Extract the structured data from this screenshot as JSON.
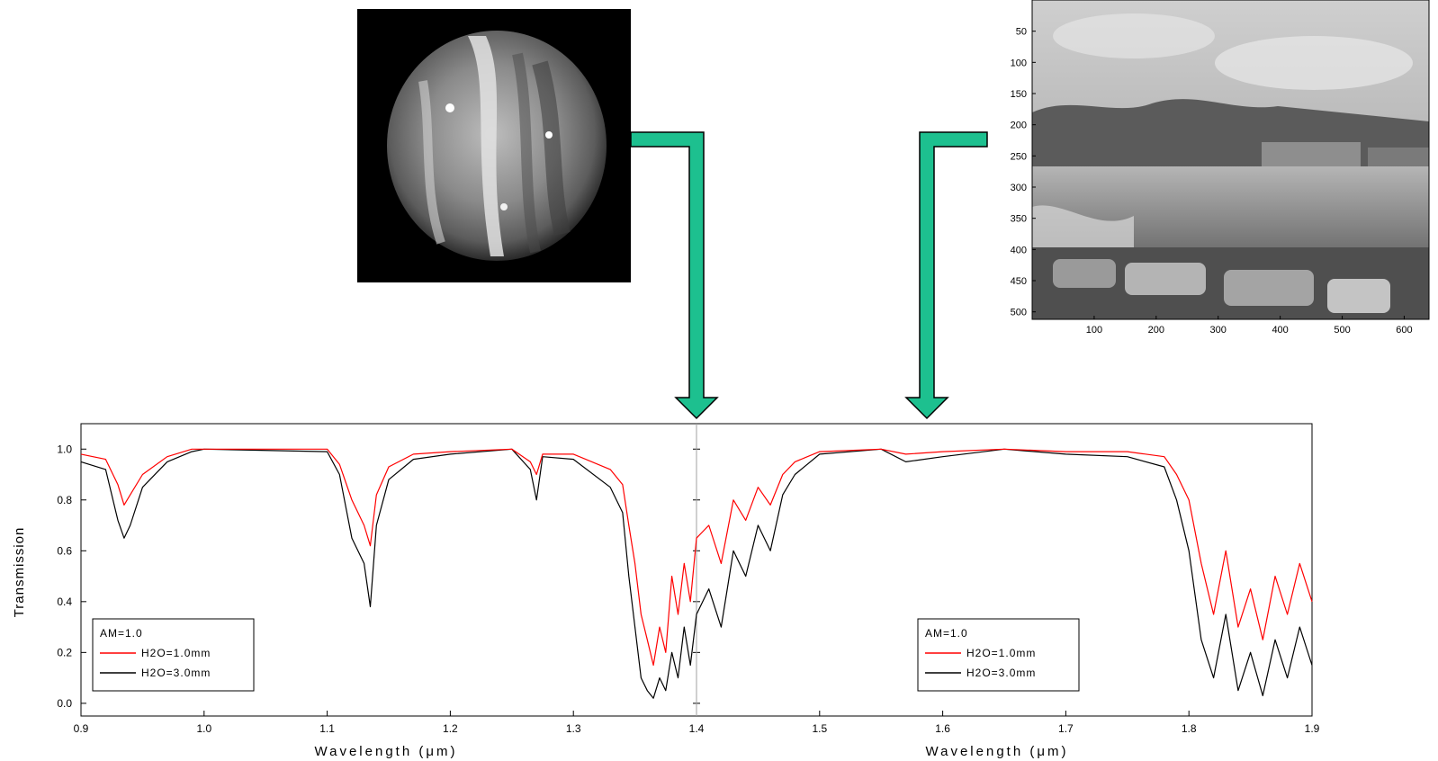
{
  "colors": {
    "arrow_fill": "#1dc08f",
    "series_1mm": "#ff0000",
    "series_3mm": "#000000",
    "divider": "#a0a0a0"
  },
  "photo": {
    "x_ticks": [
      100,
      200,
      300,
      400,
      500,
      600
    ],
    "y_ticks": [
      50,
      100,
      150,
      200,
      250,
      300,
      350,
      400,
      450,
      500
    ],
    "xlim": [
      0,
      640
    ],
    "ylim": [
      0,
      512
    ]
  },
  "chart_data": {
    "type": "line",
    "xlabel": "Wavelength (μm)",
    "ylabel": "Transmission",
    "xlim": [
      0.9,
      1.9
    ],
    "ylim": [
      -0.05,
      1.1
    ],
    "divider_x": 1.4,
    "x_ticks": [
      0.9,
      1.0,
      1.1,
      1.2,
      1.3,
      1.4,
      1.5,
      1.6,
      1.7,
      1.8,
      1.9
    ],
    "x_tick_labels": [
      "0.9",
      "1.0",
      "1.1",
      "1.2",
      "1.3",
      "1.4",
      "1.5",
      "1.6",
      "1.7",
      "1.8",
      "1.9"
    ],
    "y_ticks": [
      0.0,
      0.2,
      0.4,
      0.6,
      0.8,
      1.0
    ],
    "y_tick_labels": [
      "0.0",
      "0.2",
      "0.4",
      "0.6",
      "0.8",
      "1.0"
    ],
    "legends": [
      {
        "header": "AM=1.0",
        "entries": [
          "H2O=1.0mm",
          "H2O=3.0mm"
        ],
        "position": "bottom-left"
      },
      {
        "header": "AM=1.0",
        "entries": [
          "H2O=1.0mm",
          "H2O=3.0mm"
        ],
        "position": "bottom-right"
      }
    ],
    "series": [
      {
        "legend_label": "H2O=1.0mm",
        "color": "#ff0000",
        "x": [
          0.9,
          0.92,
          0.93,
          0.935,
          0.94,
          0.95,
          0.97,
          0.99,
          1.0,
          1.1,
          1.11,
          1.12,
          1.13,
          1.135,
          1.14,
          1.15,
          1.17,
          1.2,
          1.25,
          1.265,
          1.27,
          1.275,
          1.3,
          1.33,
          1.34,
          1.345,
          1.35,
          1.355,
          1.36,
          1.365,
          1.37,
          1.375,
          1.38,
          1.385,
          1.39,
          1.395,
          1.4,
          1.41,
          1.42,
          1.43,
          1.44,
          1.45,
          1.46,
          1.47,
          1.48,
          1.5,
          1.55,
          1.57,
          1.6,
          1.65,
          1.7,
          1.75,
          1.78,
          1.79,
          1.8,
          1.81,
          1.82,
          1.83,
          1.84,
          1.85,
          1.86,
          1.87,
          1.88,
          1.89,
          1.9
        ],
        "y": [
          0.98,
          0.96,
          0.86,
          0.78,
          0.82,
          0.9,
          0.97,
          1.0,
          1.0,
          1.0,
          0.94,
          0.8,
          0.7,
          0.62,
          0.82,
          0.93,
          0.98,
          0.99,
          1.0,
          0.95,
          0.9,
          0.98,
          0.98,
          0.92,
          0.86,
          0.7,
          0.55,
          0.35,
          0.25,
          0.15,
          0.3,
          0.2,
          0.5,
          0.35,
          0.55,
          0.4,
          0.65,
          0.7,
          0.55,
          0.8,
          0.72,
          0.85,
          0.78,
          0.9,
          0.95,
          0.99,
          1.0,
          0.98,
          0.99,
          1.0,
          0.99,
          0.99,
          0.97,
          0.9,
          0.8,
          0.55,
          0.35,
          0.6,
          0.3,
          0.45,
          0.25,
          0.5,
          0.35,
          0.55,
          0.4
        ]
      },
      {
        "legend_label": "H2O=3.0mm",
        "color": "#000000",
        "x": [
          0.9,
          0.92,
          0.93,
          0.935,
          0.94,
          0.95,
          0.97,
          0.99,
          1.0,
          1.1,
          1.11,
          1.12,
          1.13,
          1.135,
          1.14,
          1.15,
          1.17,
          1.2,
          1.25,
          1.265,
          1.27,
          1.275,
          1.3,
          1.33,
          1.34,
          1.345,
          1.35,
          1.355,
          1.36,
          1.365,
          1.37,
          1.375,
          1.38,
          1.385,
          1.39,
          1.395,
          1.4,
          1.41,
          1.42,
          1.43,
          1.44,
          1.45,
          1.46,
          1.47,
          1.48,
          1.5,
          1.55,
          1.57,
          1.6,
          1.65,
          1.7,
          1.75,
          1.78,
          1.79,
          1.8,
          1.81,
          1.82,
          1.83,
          1.84,
          1.85,
          1.86,
          1.87,
          1.88,
          1.89,
          1.9
        ],
        "y": [
          0.95,
          0.92,
          0.72,
          0.65,
          0.7,
          0.85,
          0.95,
          0.99,
          1.0,
          0.99,
          0.9,
          0.65,
          0.55,
          0.38,
          0.7,
          0.88,
          0.96,
          0.98,
          1.0,
          0.92,
          0.8,
          0.97,
          0.96,
          0.85,
          0.75,
          0.5,
          0.3,
          0.1,
          0.05,
          0.02,
          0.1,
          0.05,
          0.2,
          0.1,
          0.3,
          0.15,
          0.35,
          0.45,
          0.3,
          0.6,
          0.5,
          0.7,
          0.6,
          0.82,
          0.9,
          0.98,
          1.0,
          0.95,
          0.97,
          1.0,
          0.98,
          0.97,
          0.93,
          0.8,
          0.6,
          0.25,
          0.1,
          0.35,
          0.05,
          0.2,
          0.03,
          0.25,
          0.1,
          0.3,
          0.15
        ]
      }
    ]
  }
}
